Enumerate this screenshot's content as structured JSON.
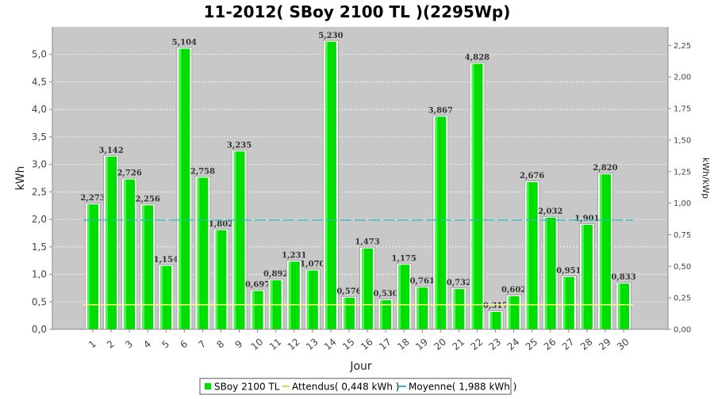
{
  "chart_data": {
    "type": "bar",
    "title": "11-2012( SBoy 2100 TL )(2295Wp)",
    "xlabel": "Jour",
    "ylabel": "kWh",
    "ylabel_right": "kWh/kWp",
    "categories": [
      "1",
      "2",
      "3",
      "4",
      "5",
      "6",
      "7",
      "8",
      "9",
      "10",
      "11",
      "12",
      "13",
      "14",
      "15",
      "16",
      "17",
      "18",
      "19",
      "20",
      "21",
      "22",
      "23",
      "24",
      "25",
      "26",
      "27",
      "28",
      "29",
      "30"
    ],
    "series": [
      {
        "name": "SBoy 2100 TL",
        "color": "#00dd00",
        "values": [
          2.273,
          3.142,
          2.726,
          2.256,
          1.154,
          5.104,
          2.758,
          1.802,
          3.235,
          0.697,
          0.892,
          1.231,
          1.07,
          5.23,
          0.576,
          1.473,
          0.53,
          1.175,
          0.761,
          3.867,
          0.732,
          4.828,
          0.317,
          0.602,
          2.676,
          2.032,
          0.951,
          1.901,
          2.82,
          0.833
        ],
        "labels": [
          "2,273",
          "3,142",
          "2,726",
          "2,256",
          "1,154",
          "5,104",
          "2,758",
          "1,802",
          "3,235",
          "0,697",
          "0,892",
          "1,231",
          "1,070",
          "5,230",
          "0,576",
          "1,473",
          "0,530",
          "1,175",
          "0,761",
          "3,867",
          "0,732",
          "4,828",
          "0,317",
          "0,602",
          "2,676",
          "2,032",
          "0,951",
          "1,901",
          "2,820",
          "0,833"
        ]
      }
    ],
    "attendus": {
      "label": "Attendus( 0,448 kWh )",
      "value": 0.448,
      "color": "#ffff88"
    },
    "moyenne": {
      "label": "Moyenne( 1,988 kWh )",
      "value": 1.988,
      "color": "#33bbbb"
    },
    "ylim": [
      0,
      5.5
    ],
    "yticks": [
      "0,0",
      "0,5",
      "1,0",
      "1,5",
      "2,0",
      "2,5",
      "3,0",
      "3,5",
      "4,0",
      "4,5",
      "5,0"
    ],
    "y2lim": [
      0,
      2.3965
    ],
    "y2ticks": [
      "0,00",
      "0,25",
      "0,50",
      "0,75",
      "1,00",
      "1,25",
      "1,50",
      "1,75",
      "2,00",
      "2,25"
    ],
    "grid": true,
    "legend_position": "bottom",
    "plot_background": "#c8c8c8"
  }
}
